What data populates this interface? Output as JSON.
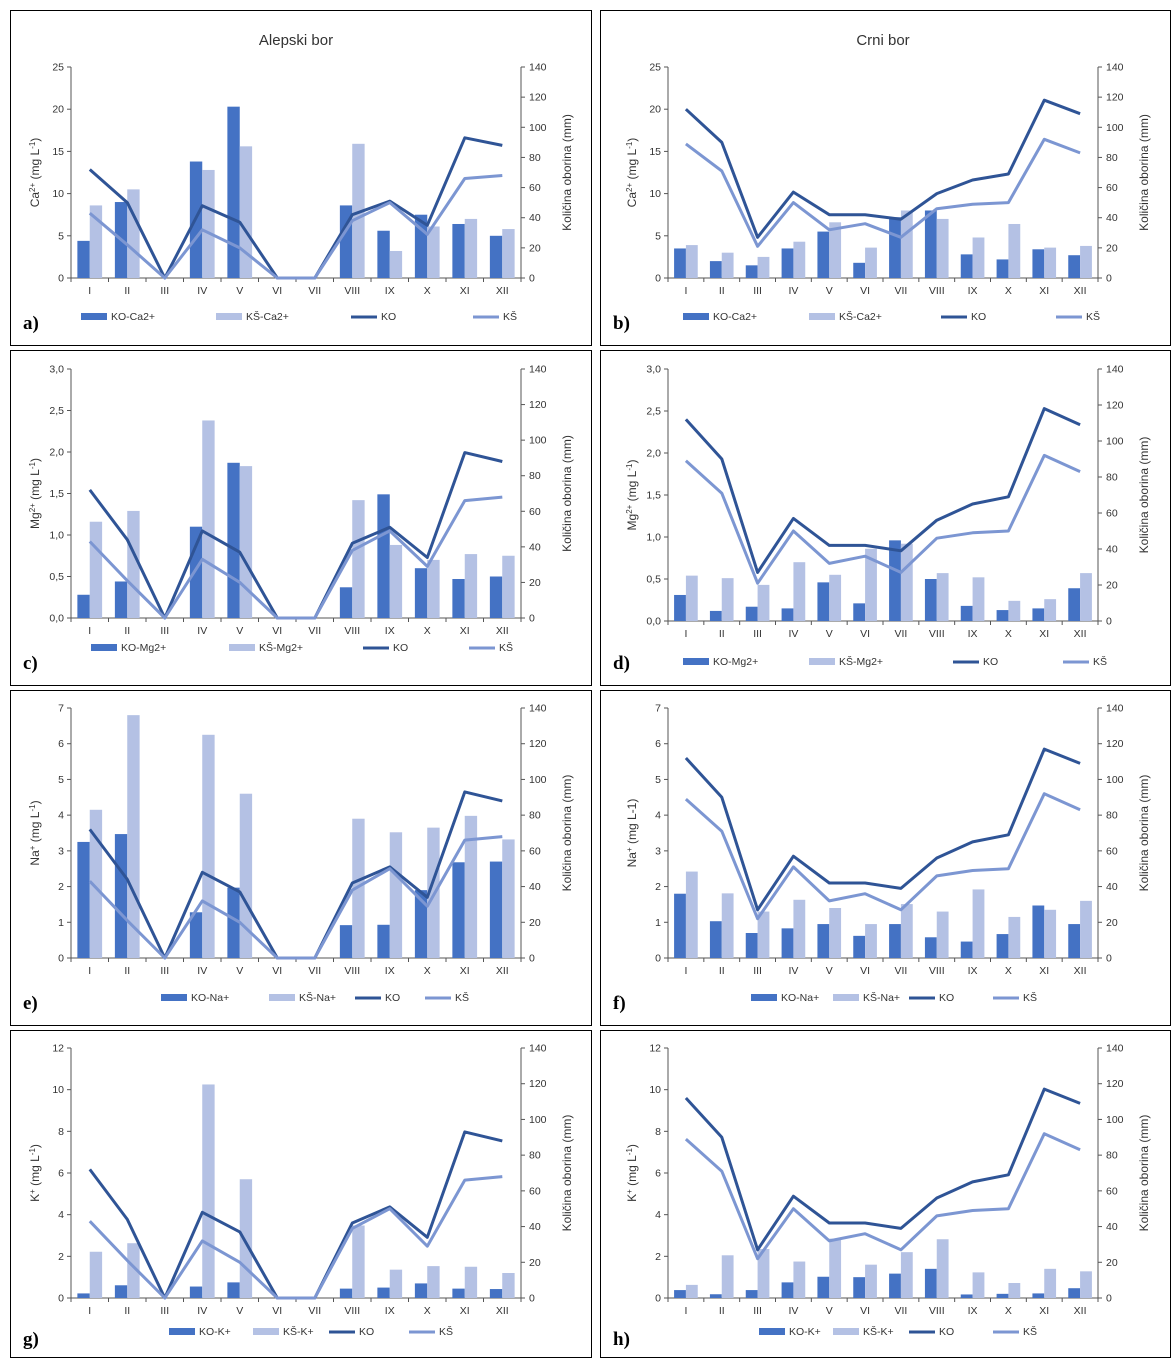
{
  "columns": {
    "left_title": "Alepski bor",
    "right_title": "Crni bor"
  },
  "colors": {
    "ko_bar": "#4472c4",
    "ks_bar": "#b4c1e4",
    "ko_line": "#2f5496",
    "ks_line": "#7c96d2"
  },
  "chart_data": [
    {
      "id": "a",
      "letter": "a)",
      "type": "bar+line",
      "title": "Alepski bor",
      "categories": [
        "I",
        "II",
        "III",
        "IV",
        "V",
        "VI",
        "VII",
        "VIII",
        "IX",
        "X",
        "XI",
        "XII"
      ],
      "ylabel_main": "Ca",
      "ylabel_sup": "2+",
      "ylabel_unit": " (mg L",
      "ylabel_unit_sup": "-1",
      "ylabel_end": ")",
      "ylabel_right": "Količina oborina (mm)",
      "ylim_left": [
        0,
        25
      ],
      "yticks_left": [
        "0",
        "5",
        "10",
        "15",
        "20",
        "25"
      ],
      "ylim_right": [
        0,
        140
      ],
      "yticks_right": [
        "0",
        "20",
        "40",
        "60",
        "80",
        "100",
        "120",
        "140"
      ],
      "series": [
        {
          "name": "KO-Ca2+",
          "kind": "bar",
          "axis": "left",
          "values": [
            4.4,
            9.0,
            0,
            13.8,
            20.3,
            0,
            0,
            8.6,
            5.6,
            7.5,
            6.4,
            5.0
          ]
        },
        {
          "name": "KŠ-Ca2+",
          "kind": "bar",
          "axis": "left",
          "values": [
            8.6,
            10.5,
            0,
            12.8,
            15.6,
            0,
            0,
            15.9,
            3.2,
            6.1,
            7.0,
            5.8
          ]
        },
        {
          "name": "KO",
          "kind": "line",
          "axis": "right",
          "values": [
            72,
            50,
            0,
            48,
            37,
            0,
            0,
            42,
            51,
            35,
            93,
            88
          ]
        },
        {
          "name": "KŠ",
          "kind": "line",
          "axis": "right",
          "values": [
            43,
            22,
            0,
            32,
            20,
            0,
            0,
            38,
            50,
            29,
            66,
            68
          ]
        }
      ]
    },
    {
      "id": "b",
      "letter": "b)",
      "type": "bar+line",
      "title": "Crni bor",
      "categories": [
        "I",
        "II",
        "III",
        "IV",
        "V",
        "VI",
        "VII",
        "VIII",
        "IX",
        "X",
        "XI",
        "XII"
      ],
      "ylabel_main": "Ca",
      "ylabel_sup": "2+",
      "ylabel_unit": " (mg L",
      "ylabel_unit_sup": "-1",
      "ylabel_end": ")",
      "ylabel_right": "Količina oborina (mm)",
      "ylim_left": [
        0,
        25
      ],
      "yticks_left": [
        "0",
        "5",
        "10",
        "15",
        "20",
        "25"
      ],
      "ylim_right": [
        0,
        140
      ],
      "yticks_right": [
        "0",
        "20",
        "40",
        "60",
        "80",
        "100",
        "120",
        "140"
      ],
      "series": [
        {
          "name": "KO-Ca2+",
          "kind": "bar",
          "axis": "left",
          "values": [
            3.5,
            2.0,
            1.5,
            3.5,
            5.5,
            1.8,
            7.2,
            8.0,
            2.8,
            2.2,
            3.4,
            2.7
          ]
        },
        {
          "name": "KŠ-Ca2+",
          "kind": "bar",
          "axis": "left",
          "values": [
            3.9,
            3.0,
            2.5,
            4.3,
            6.6,
            3.6,
            8.0,
            7.0,
            4.8,
            6.4,
            3.6,
            3.8
          ]
        },
        {
          "name": "KO",
          "kind": "line",
          "axis": "right",
          "values": [
            112,
            90,
            27,
            57,
            42,
            42,
            39,
            56,
            65,
            69,
            118,
            109
          ]
        },
        {
          "name": "KŠ",
          "kind": "line",
          "axis": "right",
          "values": [
            89,
            71,
            21,
            50,
            32,
            36,
            27,
            46,
            49,
            50,
            92,
            83
          ]
        }
      ]
    },
    {
      "id": "c",
      "letter": "c)",
      "type": "bar+line",
      "categories": [
        "I",
        "II",
        "III",
        "IV",
        "V",
        "VI",
        "VII",
        "VIII",
        "IX",
        "X",
        "XI",
        "XII"
      ],
      "ylabel_main": "Mg",
      "ylabel_sup": "2+",
      "ylabel_unit": " (mg L",
      "ylabel_unit_sup": "-1",
      "ylabel_end": ")",
      "ylabel_right": "Količina oborina (mm)",
      "ylim_left": [
        0,
        3
      ],
      "yticks_left": [
        "0,0",
        "0,5",
        "1,0",
        "1,5",
        "2,0",
        "2,5",
        "3,0"
      ],
      "ylim_right": [
        0,
        140
      ],
      "yticks_right": [
        "0",
        "20",
        "40",
        "60",
        "80",
        "100",
        "120",
        "140"
      ],
      "series": [
        {
          "name": "KO-Mg2+",
          "kind": "bar",
          "axis": "left",
          "values": [
            0.28,
            0.44,
            0,
            1.1,
            1.87,
            0,
            0,
            0.37,
            1.49,
            0.6,
            0.47,
            0.5
          ]
        },
        {
          "name": "KŠ-Mg2+",
          "kind": "bar",
          "axis": "left",
          "values": [
            1.16,
            1.29,
            0,
            2.38,
            1.83,
            0,
            0,
            1.42,
            0.88,
            0.7,
            0.77,
            0.75
          ]
        },
        {
          "name": "KO",
          "kind": "line",
          "axis": "right",
          "values": [
            72,
            44,
            0,
            49,
            37,
            0,
            0,
            42,
            51,
            34,
            93,
            88
          ]
        },
        {
          "name": "KŠ",
          "kind": "line",
          "axis": "right",
          "values": [
            43,
            21,
            0,
            33,
            20,
            0,
            0,
            38,
            49,
            29,
            66,
            68
          ]
        }
      ]
    },
    {
      "id": "d",
      "letter": "d)",
      "type": "bar+line",
      "categories": [
        "I",
        "II",
        "III",
        "IV",
        "V",
        "VI",
        "VII",
        "VIII",
        "IX",
        "X",
        "XI",
        "XII"
      ],
      "ylabel_main": "Mg",
      "ylabel_sup": "2+",
      "ylabel_unit": " (mg L",
      "ylabel_unit_sup": "-1",
      "ylabel_end": ")",
      "ylabel_right": "Količina oborina (mm)",
      "ylim_left": [
        0,
        3
      ],
      "yticks_left": [
        "0,0",
        "0,5",
        "1,0",
        "1,5",
        "2,0",
        "2,5",
        "3,0"
      ],
      "ylim_right": [
        0,
        140
      ],
      "yticks_right": [
        "0",
        "20",
        "40",
        "60",
        "80",
        "100",
        "120",
        "140"
      ],
      "series": [
        {
          "name": "KO-Mg2+",
          "kind": "bar",
          "axis": "left",
          "values": [
            0.31,
            0.12,
            0.17,
            0.15,
            0.46,
            0.21,
            0.96,
            0.5,
            0.18,
            0.13,
            0.15,
            0.39
          ]
        },
        {
          "name": "KŠ-Mg2+",
          "kind": "bar",
          "axis": "left",
          "values": [
            0.54,
            0.51,
            0.43,
            0.7,
            0.55,
            0.86,
            0.92,
            0.57,
            0.52,
            0.24,
            0.26,
            0.57
          ]
        },
        {
          "name": "KO",
          "kind": "line",
          "axis": "right",
          "values": [
            112,
            90,
            27,
            57,
            42,
            42,
            39,
            56,
            65,
            69,
            118,
            109
          ]
        },
        {
          "name": "KŠ",
          "kind": "line",
          "axis": "right",
          "values": [
            89,
            71,
            21,
            50,
            32,
            36,
            27,
            46,
            49,
            50,
            92,
            83
          ]
        }
      ]
    },
    {
      "id": "e",
      "letter": "e)",
      "type": "bar+line",
      "categories": [
        "I",
        "II",
        "III",
        "IV",
        "V",
        "VI",
        "VII",
        "VIII",
        "IX",
        "X",
        "XI",
        "XII"
      ],
      "ylabel_main": "Na",
      "ylabel_sup": "+",
      "ylabel_unit": " (mg L",
      "ylabel_unit_sup": "-1",
      "ylabel_end": ")",
      "ylabel_right": "Količina oborina (mm)",
      "ylim_left": [
        0,
        7
      ],
      "yticks_left": [
        "0",
        "1",
        "2",
        "3",
        "4",
        "5",
        "6",
        "7"
      ],
      "ylim_right": [
        0,
        140
      ],
      "yticks_right": [
        "0",
        "20",
        "40",
        "60",
        "80",
        "100",
        "120",
        "140"
      ],
      "series": [
        {
          "name": "KO-Na+",
          "kind": "bar",
          "axis": "left",
          "values": [
            3.25,
            3.47,
            0,
            1.28,
            1.97,
            0,
            0,
            0.92,
            0.93,
            1.9,
            2.68,
            2.7
          ]
        },
        {
          "name": "KŠ-Na+",
          "kind": "bar",
          "axis": "left",
          "values": [
            4.15,
            6.8,
            0,
            6.25,
            4.6,
            0,
            0,
            3.9,
            3.52,
            3.65,
            3.98,
            3.32
          ]
        },
        {
          "name": "KO",
          "kind": "line",
          "axis": "right",
          "values": [
            72,
            44,
            0,
            48,
            37,
            0,
            0,
            42,
            51,
            34,
            93,
            88
          ]
        },
        {
          "name": "KŠ",
          "kind": "line",
          "axis": "right",
          "values": [
            43,
            21,
            0,
            32,
            20,
            0,
            0,
            38,
            50,
            29,
            66,
            68
          ]
        }
      ]
    },
    {
      "id": "f",
      "letter": "f)",
      "type": "bar+line",
      "categories": [
        "I",
        "II",
        "III",
        "IV",
        "V",
        "VI",
        "VII",
        "VIII",
        "IX",
        "X",
        "XI",
        "XII"
      ],
      "ylabel_main": "Na",
      "ylabel_sup": "+",
      "ylabel_unit": " (mg L-1",
      "ylabel_unit_sup": "",
      "ylabel_end": ")",
      "ylabel_right": "Količina oborina (mm)",
      "ylim_left": [
        0,
        7
      ],
      "yticks_left": [
        "0",
        "1",
        "2",
        "3",
        "4",
        "5",
        "6",
        "7"
      ],
      "ylim_right": [
        0,
        140
      ],
      "yticks_right": [
        "0",
        "20",
        "40",
        "60",
        "80",
        "100",
        "120",
        "140"
      ],
      "series": [
        {
          "name": "KO-Na+",
          "kind": "bar",
          "axis": "left",
          "values": [
            1.8,
            1.03,
            0.7,
            0.83,
            0.95,
            0.62,
            0.95,
            0.58,
            0.46,
            0.67,
            1.47,
            0.95
          ]
        },
        {
          "name": "KŠ-Na+",
          "kind": "bar",
          "axis": "left",
          "values": [
            2.42,
            1.81,
            1.3,
            1.63,
            1.4,
            0.95,
            1.51,
            1.3,
            1.92,
            1.15,
            1.35,
            1.6
          ]
        },
        {
          "name": "KO",
          "kind": "line",
          "axis": "right",
          "values": [
            112,
            90,
            27,
            57,
            42,
            42,
            39,
            56,
            65,
            69,
            117,
            109
          ]
        },
        {
          "name": "KŠ",
          "kind": "line",
          "axis": "right",
          "values": [
            89,
            71,
            22,
            51,
            32,
            36,
            27,
            46,
            49,
            50,
            92,
            83
          ]
        }
      ]
    },
    {
      "id": "g",
      "letter": "g)",
      "type": "bar+line",
      "categories": [
        "I",
        "II",
        "III",
        "IV",
        "V",
        "VI",
        "VII",
        "VIII",
        "IX",
        "X",
        "XI",
        "XII"
      ],
      "ylabel_main": "K",
      "ylabel_sup": "+",
      "ylabel_unit": " (mg L",
      "ylabel_unit_sup": "-1",
      "ylabel_end": ")",
      "ylabel_right": "Količina oborina (mm)",
      "ylim_left": [
        0,
        12
      ],
      "yticks_left": [
        "0",
        "2",
        "4",
        "6",
        "8",
        "10",
        "12"
      ],
      "ylim_right": [
        0,
        140
      ],
      "yticks_right": [
        "0",
        "20",
        "40",
        "60",
        "80",
        "100",
        "120",
        "140"
      ],
      "series": [
        {
          "name": "KO-K+",
          "kind": "bar",
          "axis": "left",
          "values": [
            0.22,
            0.61,
            0,
            0.55,
            0.75,
            0,
            0,
            0.45,
            0.5,
            0.7,
            0.45,
            0.43
          ]
        },
        {
          "name": "KŠ-K+",
          "kind": "bar",
          "axis": "left",
          "values": [
            2.22,
            2.63,
            0,
            10.25,
            5.7,
            0,
            0,
            3.48,
            1.36,
            1.53,
            1.5,
            1.2
          ]
        },
        {
          "name": "KO",
          "kind": "line",
          "axis": "right",
          "values": [
            72,
            44,
            0,
            48,
            37,
            0,
            0,
            42,
            51,
            34,
            93,
            88
          ]
        },
        {
          "name": "KŠ",
          "kind": "line",
          "axis": "right",
          "values": [
            43,
            21,
            0,
            32,
            20,
            0,
            0,
            39,
            50,
            29,
            66,
            68
          ]
        }
      ]
    },
    {
      "id": "h",
      "letter": "h)",
      "type": "bar+line",
      "categories": [
        "I",
        "II",
        "III",
        "IV",
        "V",
        "VI",
        "VII",
        "VIII",
        "IX",
        "X",
        "XI",
        "XII"
      ],
      "ylabel_main": "K",
      "ylabel_sup": "+",
      "ylabel_unit": " (mg L",
      "ylabel_unit_sup": "-1",
      "ylabel_end": ")",
      "ylabel_right": "Količina oborina (mm)",
      "ylim_left": [
        0,
        12
      ],
      "yticks_left": [
        "0",
        "2",
        "4",
        "6",
        "8",
        "10",
        "12"
      ],
      "ylim_right": [
        0,
        140
      ],
      "yticks_right": [
        "0",
        "20",
        "40",
        "60",
        "80",
        "100",
        "120",
        "140"
      ],
      "series": [
        {
          "name": "KO-K+",
          "kind": "bar",
          "axis": "left",
          "values": [
            0.38,
            0.18,
            0.38,
            0.75,
            1.02,
            1.0,
            1.17,
            1.4,
            0.17,
            0.2,
            0.22,
            0.47
          ]
        },
        {
          "name": "KŠ-K+",
          "kind": "bar",
          "axis": "left",
          "values": [
            0.63,
            2.05,
            2.35,
            1.75,
            2.85,
            1.6,
            2.2,
            2.82,
            1.23,
            0.72,
            1.4,
            1.28
          ]
        },
        {
          "name": "KO",
          "kind": "line",
          "axis": "right",
          "values": [
            112,
            90,
            27,
            57,
            42,
            42,
            39,
            56,
            65,
            69,
            117,
            109
          ]
        },
        {
          "name": "KŠ",
          "kind": "line",
          "axis": "right",
          "values": [
            89,
            71,
            22,
            50,
            32,
            36,
            27,
            46,
            49,
            50,
            92,
            83
          ]
        }
      ]
    }
  ]
}
